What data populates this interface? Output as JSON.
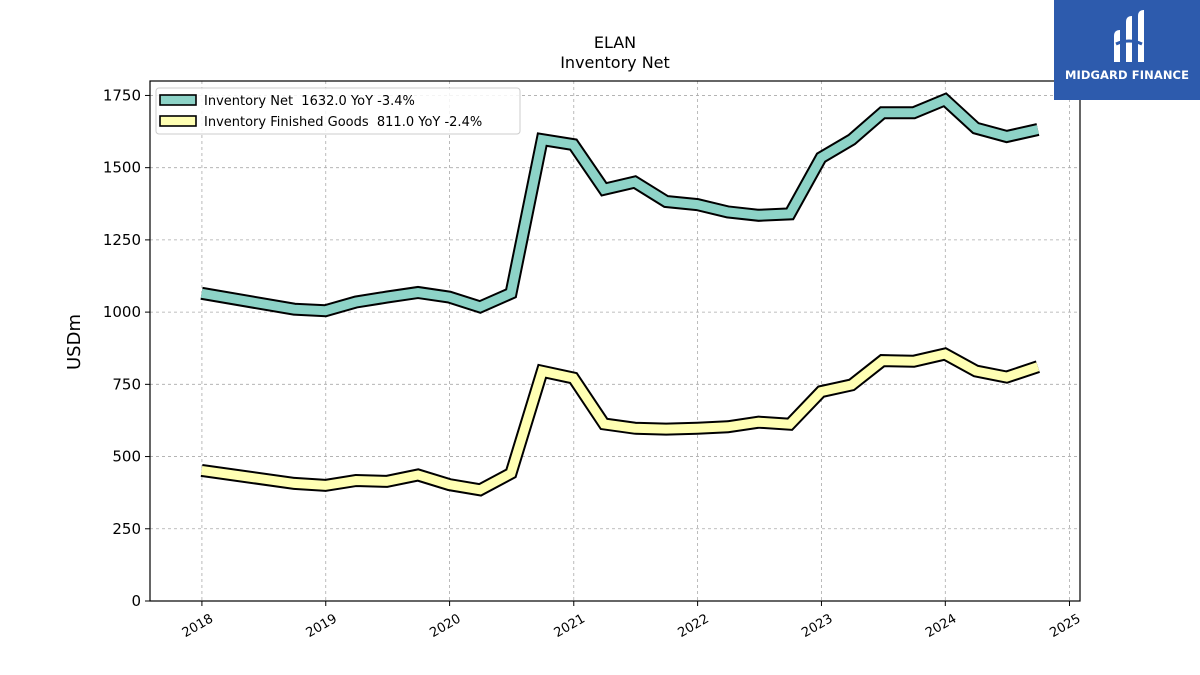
{
  "logo": {
    "text": "MIDGARD FINANCE",
    "bg_color": "#2d5bad"
  },
  "chart_data": {
    "type": "line",
    "title": "ELAN",
    "subtitle": "Inventory Net",
    "xlabel": "",
    "ylabel": "USDm",
    "xlim": [
      "2017-08-01",
      "2025-02-01"
    ],
    "ylim": [
      0,
      1800
    ],
    "x_ticks": [
      "2018",
      "2019",
      "2020",
      "2021",
      "2022",
      "2023",
      "2024",
      "2025"
    ],
    "y_ticks": [
      0,
      250,
      500,
      750,
      1000,
      1250,
      1500,
      1750
    ],
    "grid": true,
    "legend_position": "top-left",
    "series": [
      {
        "name": "Inventory Net  1632.0 YoY -3.4%",
        "color": "#8dd3c7",
        "x": [
          "2017-12-31",
          "2018-09-30",
          "2018-12-31",
          "2019-03-31",
          "2019-06-30",
          "2019-09-30",
          "2019-12-31",
          "2020-03-31",
          "2020-06-30",
          "2020-09-30",
          "2020-12-31",
          "2021-03-31",
          "2021-06-30",
          "2021-09-30",
          "2021-12-31",
          "2022-03-31",
          "2022-06-30",
          "2022-09-30",
          "2022-12-31",
          "2023-03-31",
          "2023-06-30",
          "2023-09-30",
          "2023-12-31",
          "2024-03-31",
          "2024-06-30",
          "2024-09-30"
        ],
        "values": [
          1065,
          1010,
          1005,
          1035,
          1052,
          1068,
          1052,
          1018,
          1065,
          1597,
          1580,
          1425,
          1450,
          1383,
          1372,
          1347,
          1335,
          1340,
          1535,
          1597,
          1690,
          1690,
          1735,
          1637,
          1608,
          1632
        ]
      },
      {
        "name": "Inventory Finished Goods  811.0 YoY -2.4%",
        "color": "#ffffb3",
        "x": [
          "2017-12-31",
          "2018-09-30",
          "2018-12-31",
          "2019-03-31",
          "2019-06-30",
          "2019-09-30",
          "2019-12-31",
          "2020-03-31",
          "2020-06-30",
          "2020-09-30",
          "2020-12-31",
          "2021-03-31",
          "2021-06-30",
          "2021-09-30",
          "2021-12-31",
          "2022-03-31",
          "2022-06-30",
          "2022-09-30",
          "2022-12-31",
          "2023-03-31",
          "2023-06-30",
          "2023-09-30",
          "2023-12-31",
          "2024-03-31",
          "2024-06-30",
          "2024-09-30"
        ],
        "values": [
          452,
          407,
          400,
          417,
          414,
          436,
          403,
          385,
          442,
          795,
          772,
          613,
          598,
          595,
          598,
          603,
          619,
          612,
          725,
          748,
          832,
          830,
          855,
          796,
          775,
          811
        ]
      }
    ]
  }
}
